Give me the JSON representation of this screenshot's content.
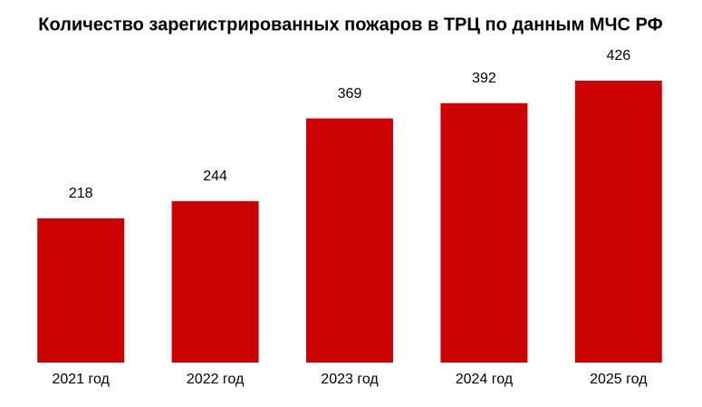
{
  "chart_data": {
    "type": "bar",
    "title": "Количество зарегистрированных пожаров в ТРЦ по данным МЧС РФ",
    "categories": [
      "2021 год",
      "2022 год",
      "2023 год",
      "2024 год",
      "2025 год"
    ],
    "values": [
      218,
      244,
      369,
      392,
      426
    ],
    "color": "#cc0000"
  }
}
